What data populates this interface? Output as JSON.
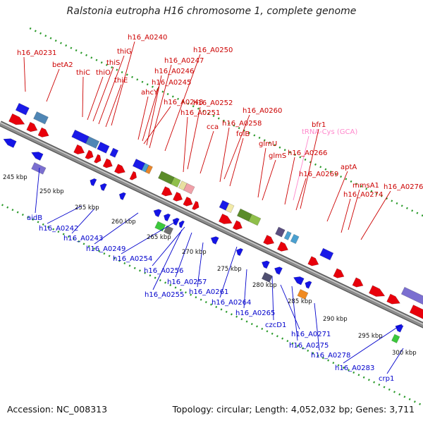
{
  "title": "Ralstonia eutropha H16 chromosome 1, complete genome",
  "footer": {
    "accession": "Accession: NC_008313",
    "topology": "Topology: circular; Length: 4,052,032 bp; Genes: 3,711"
  },
  "colors": {
    "forward_gene": "#e8000b",
    "reverse_gene": "#1414e6",
    "forward_label": "#cc0000",
    "reverse_label": "#0000cc",
    "trna_label": "#ff88cc",
    "backbone": "#8c8c8c",
    "tick_dots": "#2a9a2a"
  },
  "scale_ticks": [
    "245 kbp",
    "250 kbp",
    "255 kbp",
    "260 kbp",
    "265 kbp",
    "270 kbp",
    "275 kbp",
    "280 kbp",
    "285 kbp",
    "290 kbp",
    "295 kbp",
    "300 kbp"
  ],
  "forward_labels": [
    "h16_A0231",
    "betA2",
    "thiC",
    "thiO",
    "thiS",
    "thiG",
    "h16_A0240",
    "thiE",
    "h16_A0245",
    "h16_A0246",
    "h16_A0247",
    "h16_A0250",
    "ahcY",
    "h16_A0248",
    "h16_A0252",
    "h16_A0251",
    "cca",
    "h16_A0260",
    "h16_A0258",
    "folB",
    "glmU",
    "glmS",
    "tRNA-Cys (GCA)",
    "bfr1",
    "h16_A0266",
    "h16_A0269",
    "aptA",
    "mmsA1",
    "h16_A0274",
    "h16_A0276"
  ],
  "reverse_labels": [
    "aidB",
    "h16_A0242",
    "h16_A0243",
    "h16_A0249",
    "h16_A0254",
    "h16_A0256",
    "h16_A0255",
    "h16_A0257",
    "h16_A0261",
    "h16_A0264",
    "h16_A0265",
    "czcD1",
    "h16_A0271",
    "h16_A0275",
    "h16_A0278",
    "h16_A0283",
    "crp1"
  ]
}
